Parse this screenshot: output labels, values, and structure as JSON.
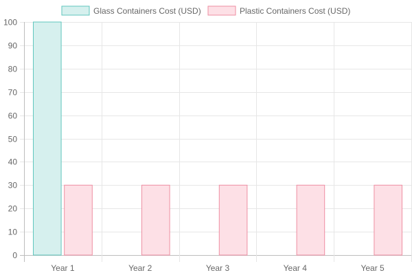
{
  "chart_data": {
    "type": "bar",
    "categories": [
      "Year 1",
      "Year 2",
      "Year 3",
      "Year 4",
      "Year 5"
    ],
    "series": [
      {
        "name": "Glass Containers Cost (USD)",
        "values": [
          100,
          0,
          0,
          0,
          0
        ],
        "fill": "#d6f0ee",
        "stroke": "#5fc6bd"
      },
      {
        "name": "Plastic Containers Cost (USD)",
        "values": [
          30,
          30,
          30,
          30,
          30
        ],
        "fill": "#fde0e6",
        "stroke": "#ee8ea2"
      }
    ],
    "ylim": [
      0,
      100
    ],
    "yticks": [
      0,
      10,
      20,
      30,
      40,
      50,
      60,
      70,
      80,
      90,
      100
    ],
    "grid": true,
    "legend": "top-center",
    "gridColor": "#e6e6e6",
    "axisColor": "#bdbdbd"
  }
}
